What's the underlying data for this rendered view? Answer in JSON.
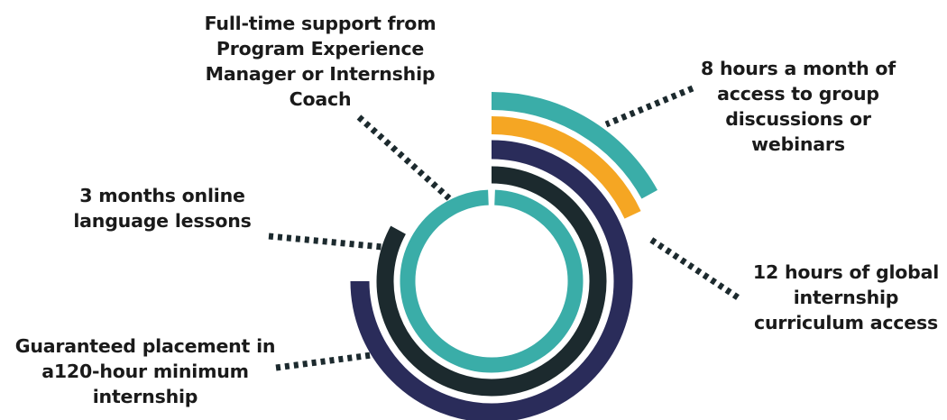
{
  "colors": {
    "teal": "#3aada8",
    "orange": "#f5a623",
    "navy": "#2a2c5a",
    "charcoal": "#1c2a2e",
    "text": "#1a1a1a",
    "leader": "#1c2a2e"
  },
  "rings": [
    {
      "id": "full-time-support",
      "color": "teal",
      "share": 1.0,
      "label_key": "full_time"
    },
    {
      "id": "language-lessons",
      "color": "charcoal",
      "share": 0.83,
      "label_key": "language"
    },
    {
      "id": "guaranteed-placement",
      "color": "navy",
      "share": 0.75,
      "label_key": "guaranteed"
    },
    {
      "id": "global-curriculum",
      "color": "orange",
      "share": 0.18,
      "label_key": "twelve_hours"
    },
    {
      "id": "group-discussions",
      "color": "teal",
      "share": 0.17,
      "label_key": "eight_hours"
    }
  ],
  "labels": {
    "full_time": [
      "Full-time support from",
      "Program Experience",
      "Manager or Internship",
      "Coach"
    ],
    "eight_hours": [
      "8 hours a month of",
      "access to group",
      "discussions or",
      "webinars"
    ],
    "language": [
      "3 months online",
      "language lessons"
    ],
    "twelve_hours": [
      "12 hours of global",
      "internship",
      "curriculum access"
    ],
    "guaranteed": [
      "Guaranteed placement in",
      "a120-hour minimum",
      "internship"
    ]
  }
}
